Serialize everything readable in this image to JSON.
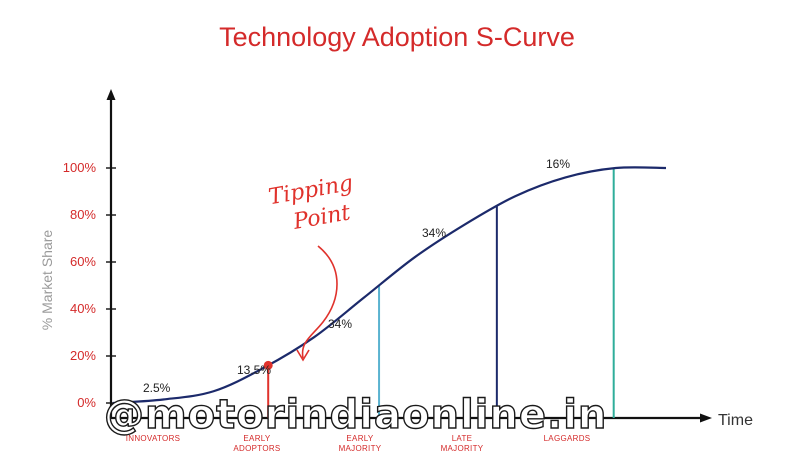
{
  "title": "Technology Adoption S-Curve",
  "y_axis_label": "% Market Share",
  "x_axis_label": "Time",
  "annotation": {
    "line1": "Tipping",
    "line2": "Point"
  },
  "watermark": "@motorindiaonline.in",
  "colors": {
    "title": "#d42a2a",
    "curve": "#1c2a6b",
    "tipping": "#e0322c",
    "line_early_majority": "#5ab3d0",
    "line_late_majority": "#1c2a6b",
    "line_laggards": "#2fae9a"
  },
  "chart_data": {
    "type": "line",
    "title": "Technology Adoption S-Curve",
    "xlabel": "Time",
    "ylabel": "% Market Share",
    "ylim": [
      0,
      100
    ],
    "y_ticks": [
      "0%",
      "20%",
      "40%",
      "60%",
      "80%",
      "100%"
    ],
    "series": [
      {
        "x": [
          0,
          1,
          2,
          3,
          4,
          5,
          6,
          7,
          8,
          9,
          10,
          11
        ],
        "y": [
          0,
          1.5,
          5,
          15,
          28,
          45,
          62,
          76,
          88,
          96,
          100,
          100
        ]
      }
    ],
    "segments": [
      {
        "label": "INNOVATORS",
        "share": "2.5%"
      },
      {
        "label": "EARLY ADOPTORS",
        "line1": "EARLY",
        "line2": "ADOPTORS",
        "share": "13.5%"
      },
      {
        "label": "EARLY MAJORITY",
        "line1": "EARLY",
        "line2": "MAJORITY",
        "share": "34%"
      },
      {
        "label": "LATE MAJORITY",
        "line1": "LATE",
        "line2": "MAJORITY",
        "share": "34%"
      },
      {
        "label": "LAGGARDS",
        "share": "16%"
      }
    ],
    "tipping_point": {
      "y": 16
    }
  }
}
